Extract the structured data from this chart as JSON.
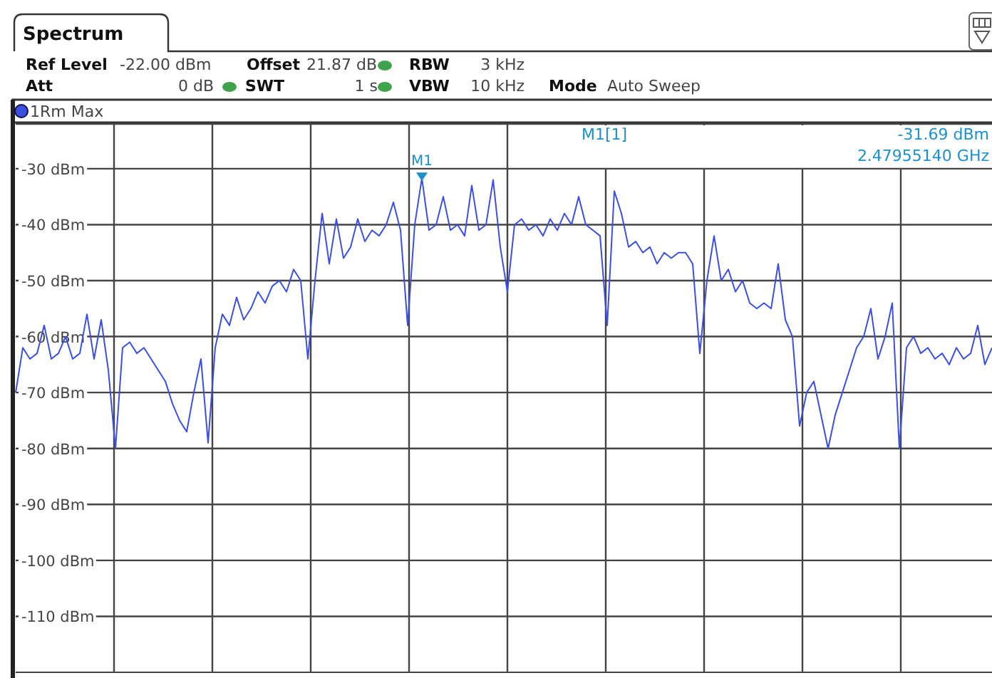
{
  "chart_data": {
    "type": "line",
    "title": "Spectrum",
    "categories": [
      null,
      null,
      null,
      null,
      null,
      null,
      null,
      null,
      null,
      null,
      null,
      null,
      null,
      null,
      null,
      null,
      null,
      null,
      null,
      null,
      null,
      null,
      null,
      null,
      null,
      null,
      null,
      null,
      null,
      null,
      null,
      null,
      null,
      null,
      null,
      null,
      null,
      null,
      null,
      null,
      null,
      null,
      null,
      null,
      null,
      null,
      null,
      null,
      null,
      null,
      null,
      null,
      null,
      null,
      null,
      null,
      null,
      null,
      null,
      null,
      null,
      null,
      null,
      null,
      null,
      null,
      null,
      null,
      null,
      null,
      null,
      null,
      null,
      null,
      null,
      null,
      null,
      null,
      null,
      null,
      null,
      null,
      null,
      null,
      null,
      null,
      null,
      null,
      null,
      null,
      null,
      null,
      null,
      null,
      null,
      null,
      null,
      null,
      null,
      null,
      null,
      null,
      null,
      null,
      null,
      null,
      null,
      null,
      null,
      null,
      null,
      null,
      null,
      null,
      null,
      null,
      null,
      null,
      null,
      null,
      null,
      null,
      null,
      null,
      null,
      null,
      null,
      null,
      null,
      null,
      null,
      null,
      null,
      null,
      null,
      null,
      null,
      null
    ],
    "series": [
      {
        "name": "1Rm Max",
        "color": "#3b4fe0",
        "values": [
          -70,
          -62,
          -64,
          -63,
          -58,
          -64,
          -63,
          -60,
          -64,
          -63,
          -56,
          -64,
          -57,
          -66,
          -80,
          -62,
          -61,
          -63,
          -62,
          -64,
          -66,
          -68,
          -72,
          -75,
          -77,
          -70,
          -64,
          -79,
          -62,
          -56,
          -58,
          -53,
          -57,
          -55,
          -52,
          -54,
          -51,
          -50,
          -52,
          -48,
          -50,
          -64,
          -50,
          -38,
          -47,
          -39,
          -46,
          -44,
          -39,
          -43,
          -41,
          -42,
          -40,
          -36,
          -41,
          -58,
          -40,
          -31.69,
          -41,
          -40,
          -35,
          -41,
          -40,
          -42,
          -33,
          -41,
          -40,
          -32,
          -44,
          -52,
          -40,
          -39,
          -41,
          -40,
          -42,
          -39,
          -41,
          -38,
          -40,
          -35,
          -40,
          -41,
          -42,
          -58,
          -34,
          -38,
          -44,
          -43,
          -45,
          -44,
          -47,
          -45,
          -46,
          -45,
          -45,
          -47,
          -63,
          -50,
          -42,
          -50,
          -48,
          -52,
          -50,
          -54,
          -55,
          -54,
          -55,
          -47,
          -57,
          -60,
          -76,
          -70,
          -68,
          -74,
          -80,
          -74,
          -70,
          -66,
          -62,
          -60,
          -55,
          -64,
          -60,
          -54,
          -80,
          -62,
          -60,
          -63,
          -62,
          -64,
          -63,
          -65,
          -62,
          -64,
          -63,
          -58,
          -65,
          -62
        ]
      }
    ],
    "ylim": [
      -120,
      -22
    ],
    "yticks": [
      {
        "value": -30,
        "label": "-30 dBm"
      },
      {
        "value": -40,
        "label": "-40 dBm"
      },
      {
        "value": -50,
        "label": "-50 dBm"
      },
      {
        "value": -60,
        "label": "-60 dBm"
      },
      {
        "value": -70,
        "label": "-70 dBm"
      },
      {
        "value": -80,
        "label": "-80 dBm"
      },
      {
        "value": -90,
        "label": "-90 dBm"
      },
      {
        "value": -100,
        "label": "-100 dBm"
      },
      {
        "value": -110,
        "label": "-110 dBm"
      }
    ],
    "grid": true,
    "legend": "top left",
    "marker": "none",
    "line_style": "solid",
    "annotations": [
      "Ref Level",
      "-22.00 dBm",
      "Offset",
      "21.87 dB",
      "RBW",
      "3 kHz",
      "Att",
      "0 dB",
      "SWT",
      "1 s",
      "VBW",
      "10 kHz",
      "Mode",
      "Auto Sweep",
      "M1[1]",
      "-31.69 dBm",
      "2.47955140 GHz",
      {
        "text": "M1",
        "y": -31.69
      }
    ]
  }
}
